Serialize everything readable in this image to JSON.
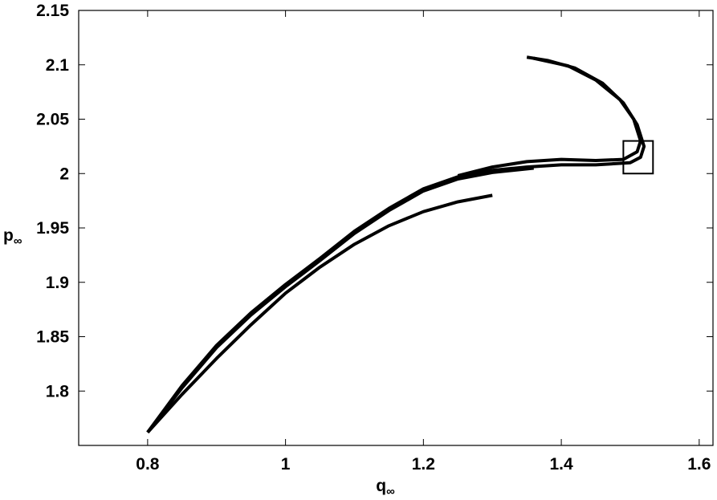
{
  "chart_data": {
    "type": "line",
    "x_label": {
      "main": "q",
      "sub": "∞"
    },
    "y_label": {
      "main": "p",
      "sub": "∞"
    },
    "xlim": [
      0.7,
      1.62
    ],
    "ylim": [
      1.75,
      2.15
    ],
    "xticks": [
      0.8,
      1,
      1.2,
      1.4,
      1.6
    ],
    "yticks": [
      1.8,
      1.85,
      1.9,
      1.95,
      2,
      2.05,
      2.1,
      2.15
    ],
    "color": "#000000",
    "highlight_box": {
      "x": [
        1.49,
        1.533
      ],
      "y": [
        2.0,
        2.03
      ]
    },
    "series": [
      {
        "x": [
          0.8,
          0.85,
          0.9,
          0.95,
          1.0,
          1.05,
          1.1,
          1.15,
          1.2,
          1.25,
          1.3
        ],
        "values": [
          1.762,
          1.797,
          1.83,
          1.861,
          1.89,
          1.914,
          1.935,
          1.952,
          1.965,
          1.974,
          1.98
        ]
      },
      {
        "x": [
          0.8,
          0.85,
          0.9,
          0.95,
          1.0,
          1.05,
          1.1,
          1.15,
          1.2,
          1.25,
          1.3,
          1.36
        ],
        "values": [
          1.762,
          1.803,
          1.84,
          1.87,
          1.896,
          1.92,
          1.945,
          1.966,
          1.984,
          1.995,
          2.001,
          2.005
        ]
      },
      {
        "x": [
          0.8,
          0.85,
          0.9,
          0.95,
          1.0,
          1.05,
          1.1,
          1.15,
          1.2,
          1.25,
          1.3,
          1.35,
          1.4,
          1.45,
          1.5,
          1.515,
          1.52,
          1.51,
          1.49,
          1.46,
          1.42,
          1.38,
          1.35
        ],
        "values": [
          1.762,
          1.805,
          1.842,
          1.872,
          1.898,
          1.922,
          1.947,
          1.968,
          1.986,
          1.997,
          2.003,
          2.006,
          2.008,
          2.008,
          2.01,
          2.015,
          2.025,
          2.045,
          2.065,
          2.083,
          2.097,
          2.104,
          2.107
        ]
      },
      {
        "x": [
          1.25,
          1.3,
          1.35,
          1.4,
          1.45,
          1.49,
          1.51,
          1.515,
          1.505,
          1.485,
          1.45,
          1.41,
          1.36
        ],
        "values": [
          1.998,
          2.006,
          2.011,
          2.013,
          2.012,
          2.013,
          2.02,
          2.03,
          2.05,
          2.068,
          2.086,
          2.099,
          2.106
        ]
      }
    ]
  }
}
